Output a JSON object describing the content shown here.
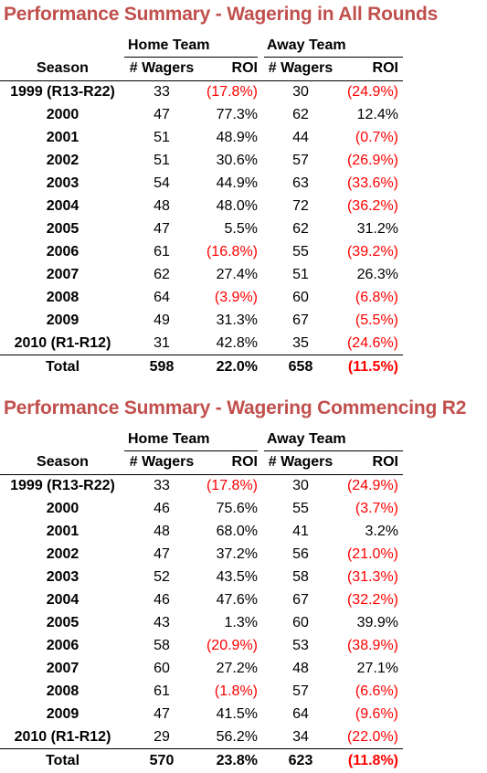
{
  "tables": [
    {
      "title": "Performance Summary - Wagering in All Rounds",
      "group_home": "Home Team",
      "group_away": "Away Team",
      "col_season": "Season",
      "col_home_wagers": "# Wagers",
      "col_home_roi": "ROI",
      "col_away_wagers": "# Wagers",
      "col_away_roi": "ROI",
      "rows": [
        {
          "season": "1999 (R13-R22)",
          "home_wagers": "33",
          "home_roi": "(17.8%)",
          "away_wagers": "30",
          "away_roi": "(24.9%)"
        },
        {
          "season": "2000",
          "home_wagers": "47",
          "home_roi": "77.3%",
          "away_wagers": "62",
          "away_roi": "12.4%"
        },
        {
          "season": "2001",
          "home_wagers": "51",
          "home_roi": "48.9%",
          "away_wagers": "44",
          "away_roi": "(0.7%)"
        },
        {
          "season": "2002",
          "home_wagers": "51",
          "home_roi": "30.6%",
          "away_wagers": "57",
          "away_roi": "(26.9%)"
        },
        {
          "season": "2003",
          "home_wagers": "54",
          "home_roi": "44.9%",
          "away_wagers": "63",
          "away_roi": "(33.6%)"
        },
        {
          "season": "2004",
          "home_wagers": "48",
          "home_roi": "48.0%",
          "away_wagers": "72",
          "away_roi": "(36.2%)"
        },
        {
          "season": "2005",
          "home_wagers": "47",
          "home_roi": "5.5%",
          "away_wagers": "62",
          "away_roi": "31.2%"
        },
        {
          "season": "2006",
          "home_wagers": "61",
          "home_roi": "(16.8%)",
          "away_wagers": "55",
          "away_roi": "(39.2%)"
        },
        {
          "season": "2007",
          "home_wagers": "62",
          "home_roi": "27.4%",
          "away_wagers": "51",
          "away_roi": "26.3%"
        },
        {
          "season": "2008",
          "home_wagers": "64",
          "home_roi": "(3.9%)",
          "away_wagers": "60",
          "away_roi": "(6.8%)"
        },
        {
          "season": "2009",
          "home_wagers": "49",
          "home_roi": "31.3%",
          "away_wagers": "67",
          "away_roi": "(5.5%)"
        },
        {
          "season": "2010 (R1-R12)",
          "home_wagers": "31",
          "home_roi": "42.8%",
          "away_wagers": "35",
          "away_roi": "(24.6%)"
        }
      ],
      "total": {
        "season": "Total",
        "home_wagers": "598",
        "home_roi": "22.0%",
        "away_wagers": "658",
        "away_roi": "(11.5%)"
      }
    },
    {
      "title": "Performance Summary - Wagering Commencing R2",
      "group_home": "Home Team",
      "group_away": "Away Team",
      "col_season": "Season",
      "col_home_wagers": "# Wagers",
      "col_home_roi": "ROI",
      "col_away_wagers": "# Wagers",
      "col_away_roi": "ROI",
      "rows": [
        {
          "season": "1999 (R13-R22)",
          "home_wagers": "33",
          "home_roi": "(17.8%)",
          "away_wagers": "30",
          "away_roi": "(24.9%)"
        },
        {
          "season": "2000",
          "home_wagers": "46",
          "home_roi": "75.6%",
          "away_wagers": "55",
          "away_roi": "(3.7%)"
        },
        {
          "season": "2001",
          "home_wagers": "48",
          "home_roi": "68.0%",
          "away_wagers": "41",
          "away_roi": "3.2%"
        },
        {
          "season": "2002",
          "home_wagers": "47",
          "home_roi": "37.2%",
          "away_wagers": "56",
          "away_roi": "(21.0%)"
        },
        {
          "season": "2003",
          "home_wagers": "52",
          "home_roi": "43.5%",
          "away_wagers": "58",
          "away_roi": "(31.3%)"
        },
        {
          "season": "2004",
          "home_wagers": "46",
          "home_roi": "47.6%",
          "away_wagers": "67",
          "away_roi": "(32.2%)"
        },
        {
          "season": "2005",
          "home_wagers": "43",
          "home_roi": "1.3%",
          "away_wagers": "60",
          "away_roi": "39.9%"
        },
        {
          "season": "2006",
          "home_wagers": "58",
          "home_roi": "(20.9%)",
          "away_wagers": "53",
          "away_roi": "(38.9%)"
        },
        {
          "season": "2007",
          "home_wagers": "60",
          "home_roi": "27.2%",
          "away_wagers": "48",
          "away_roi": "27.1%"
        },
        {
          "season": "2008",
          "home_wagers": "61",
          "home_roi": "(1.8%)",
          "away_wagers": "57",
          "away_roi": "(6.6%)"
        },
        {
          "season": "2009",
          "home_wagers": "47",
          "home_roi": "41.5%",
          "away_wagers": "64",
          "away_roi": "(9.6%)"
        },
        {
          "season": "2010 (R1-R12)",
          "home_wagers": "29",
          "home_roi": "56.2%",
          "away_wagers": "34",
          "away_roi": "(22.0%)"
        }
      ],
      "total": {
        "season": "Total",
        "home_wagers": "570",
        "home_roi": "23.8%",
        "away_wagers": "623",
        "away_roi": "(11.8%)"
      }
    }
  ],
  "colors": {
    "title": "#c0504d",
    "negative": "#ff0000",
    "text": "#000000"
  }
}
